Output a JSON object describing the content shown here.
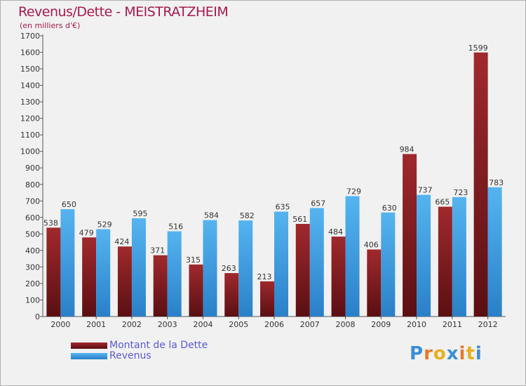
{
  "title": "Revenus/Dette - MEISTRATZHEIM",
  "subtitle": "(en milliers d'€)",
  "colors": {
    "debt": "#7a1a1e",
    "revenue": "#3a9ee0",
    "title": "#a8194f",
    "legend_text": "#5a5ad8"
  },
  "chart_data": {
    "type": "bar",
    "title": "Revenus/Dette - MEISTRATZHEIM",
    "ylabel": "(en milliers d'€)",
    "categories": [
      "2000",
      "2001",
      "2002",
      "2003",
      "2004",
      "2005",
      "2006",
      "2007",
      "2008",
      "2009",
      "2010",
      "2011",
      "2012"
    ],
    "series": [
      {
        "name": "Montant de la Dette",
        "values": [
          538,
          479,
          424,
          371,
          315,
          263,
          213,
          561,
          484,
          406,
          984,
          665,
          1599
        ]
      },
      {
        "name": "Revenus",
        "values": [
          650,
          529,
          595,
          516,
          584,
          582,
          635,
          657,
          729,
          630,
          737,
          723,
          783
        ]
      }
    ],
    "ylim": [
      0,
      1700
    ],
    "yticks": [
      0,
      100,
      200,
      300,
      400,
      500,
      600,
      700,
      800,
      900,
      1000,
      1100,
      1200,
      1300,
      1400,
      1500,
      1600,
      1700
    ],
    "grid": false,
    "legend": "bottom-left"
  },
  "legend": {
    "debt_label": "Montant de la Dette",
    "revenue_label": "Revenus"
  },
  "logo": {
    "letters": [
      "P",
      "r",
      "o",
      "x",
      "i",
      "t",
      "i"
    ],
    "colors": [
      "#3a8fd8",
      "#e8782a",
      "#e8b020",
      "#3a8fd8",
      "#e8782a",
      "#e8b020",
      "#3a8fd8"
    ]
  }
}
